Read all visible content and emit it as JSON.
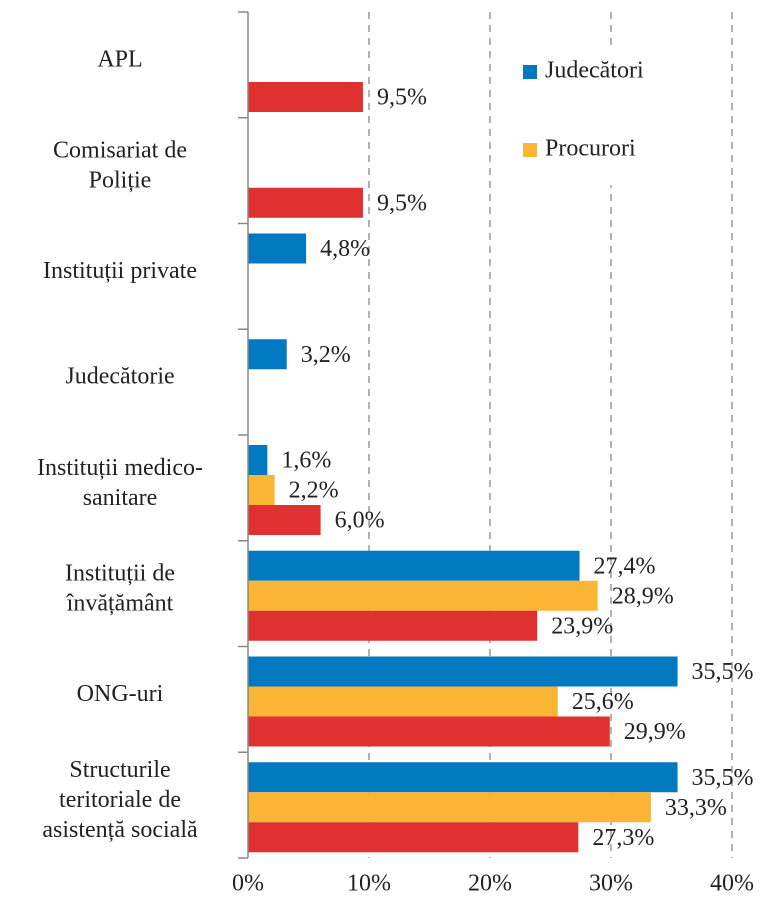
{
  "chart_data": {
    "type": "bar",
    "orientation": "horizontal",
    "categories": [
      "APL",
      "Comisariat de\nPoliție",
      "Instituții private",
      "Judecătorie",
      "Instituții medico-\nsanitare",
      "Instituții de\nînvățământ",
      "ONG-uri",
      "Structurile\nteritoriale de\nasistență socială"
    ],
    "series": [
      {
        "name": "Judecători",
        "color": "#0079c1",
        "values": [
          null,
          null,
          4.8,
          3.2,
          1.6,
          27.4,
          35.5,
          35.5
        ],
        "value_labels": [
          null,
          null,
          "4,8%",
          "3,2%",
          "1,6%",
          "27,4%",
          "35,5%",
          "35,5%"
        ]
      },
      {
        "name": "Procurori",
        "color": "#fbb535",
        "values": [
          null,
          null,
          null,
          null,
          2.2,
          28.9,
          25.6,
          33.3
        ],
        "value_labels": [
          null,
          null,
          null,
          null,
          "2,2%",
          "28,9%",
          "25,6%",
          "33,3%"
        ]
      },
      {
        "color": "#e03131",
        "values": [
          9.5,
          9.5,
          null,
          null,
          6.0,
          23.9,
          29.9,
          27.3
        ],
        "value_labels": [
          "9,5%",
          "9,5%",
          null,
          null,
          "6,0%",
          "23,9%",
          "29,9%",
          "27,3%"
        ]
      }
    ],
    "xlim": [
      0,
      40
    ],
    "xticks": [
      {
        "value": 0,
        "label": "0%"
      },
      {
        "value": 10,
        "label": "10%"
      },
      {
        "value": 20,
        "label": "20%"
      },
      {
        "value": 30,
        "label": "30%"
      },
      {
        "value": 40,
        "label": "40%"
      }
    ],
    "grid": true,
    "legend": "top-right"
  }
}
